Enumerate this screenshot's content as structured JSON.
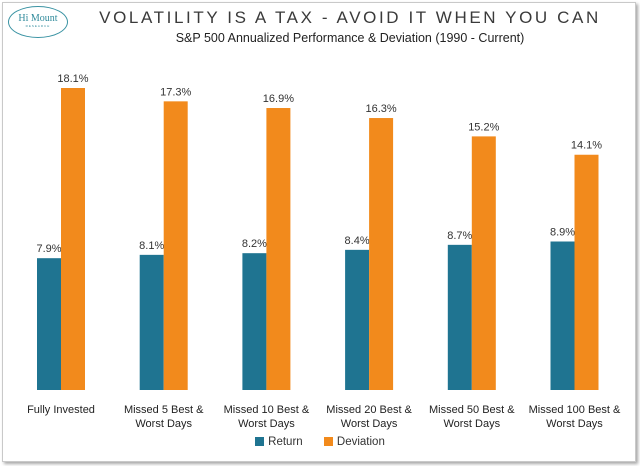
{
  "logo": {
    "name": "Hi Mount",
    "sub": "RESEARCH"
  },
  "colors": {
    "return": "#1f7491",
    "deviation": "#f28a1c"
  },
  "chart_data": {
    "type": "bar",
    "title": "VOLATILITY IS A TAX - AVOID IT WHEN YOU CAN",
    "subtitle": "S&P 500 Annualized Performance & Deviation (1990 - Current)",
    "categories": [
      [
        "Fully Invested"
      ],
      [
        "Missed 5 Best &",
        "Worst Days"
      ],
      [
        "Missed 10 Best &",
        "Worst Days"
      ],
      [
        "Missed 20 Best &",
        "Worst Days"
      ],
      [
        "Missed 50 Best &",
        "Worst Days"
      ],
      [
        "Missed 100 Best &",
        "Worst Days"
      ]
    ],
    "series": [
      {
        "name": "Return",
        "values": [
          7.9,
          8.1,
          8.2,
          8.4,
          8.7,
          8.9
        ],
        "labels": [
          "7.9%",
          "8.1%",
          "8.2%",
          "8.4%",
          "8.7%",
          "8.9%"
        ]
      },
      {
        "name": "Deviation",
        "values": [
          18.1,
          17.3,
          16.9,
          16.3,
          15.2,
          14.1
        ],
        "labels": [
          "18.1%",
          "17.3%",
          "16.9%",
          "16.3%",
          "15.2%",
          "14.1%"
        ]
      }
    ],
    "ylim": [
      0,
      18.1
    ],
    "grid": false,
    "legend": "bottom-center"
  }
}
